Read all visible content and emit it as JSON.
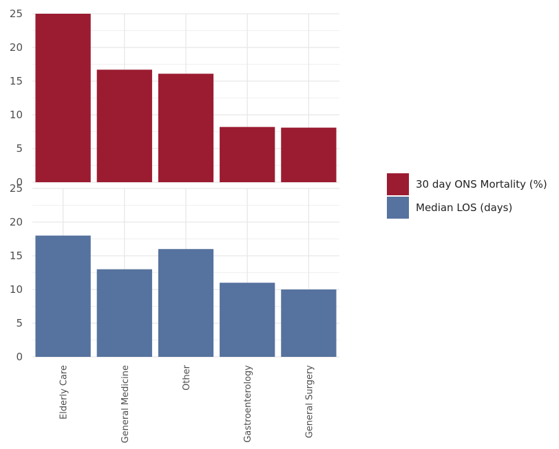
{
  "chart_data": {
    "type": "bar",
    "categories": [
      "Elderly Care",
      "General Medicine",
      "Other",
      "Gastroenterology",
      "General Surgery"
    ],
    "series": [
      {
        "name": "30 day ONS Mortality (%)",
        "color": "#9b1c31",
        "values": [
          25,
          16.7,
          16.1,
          8.2,
          8.1
        ]
      },
      {
        "name": "Median LOS (days)",
        "color": "#56729e",
        "values": [
          18,
          13,
          16,
          11,
          10
        ]
      }
    ],
    "ylim": [
      0,
      25
    ],
    "yticks": [
      0,
      5,
      10,
      15,
      20,
      25
    ],
    "grid": true,
    "legend_position": "right",
    "facets": "stacked vertically, one panel per series, shared x axis"
  }
}
